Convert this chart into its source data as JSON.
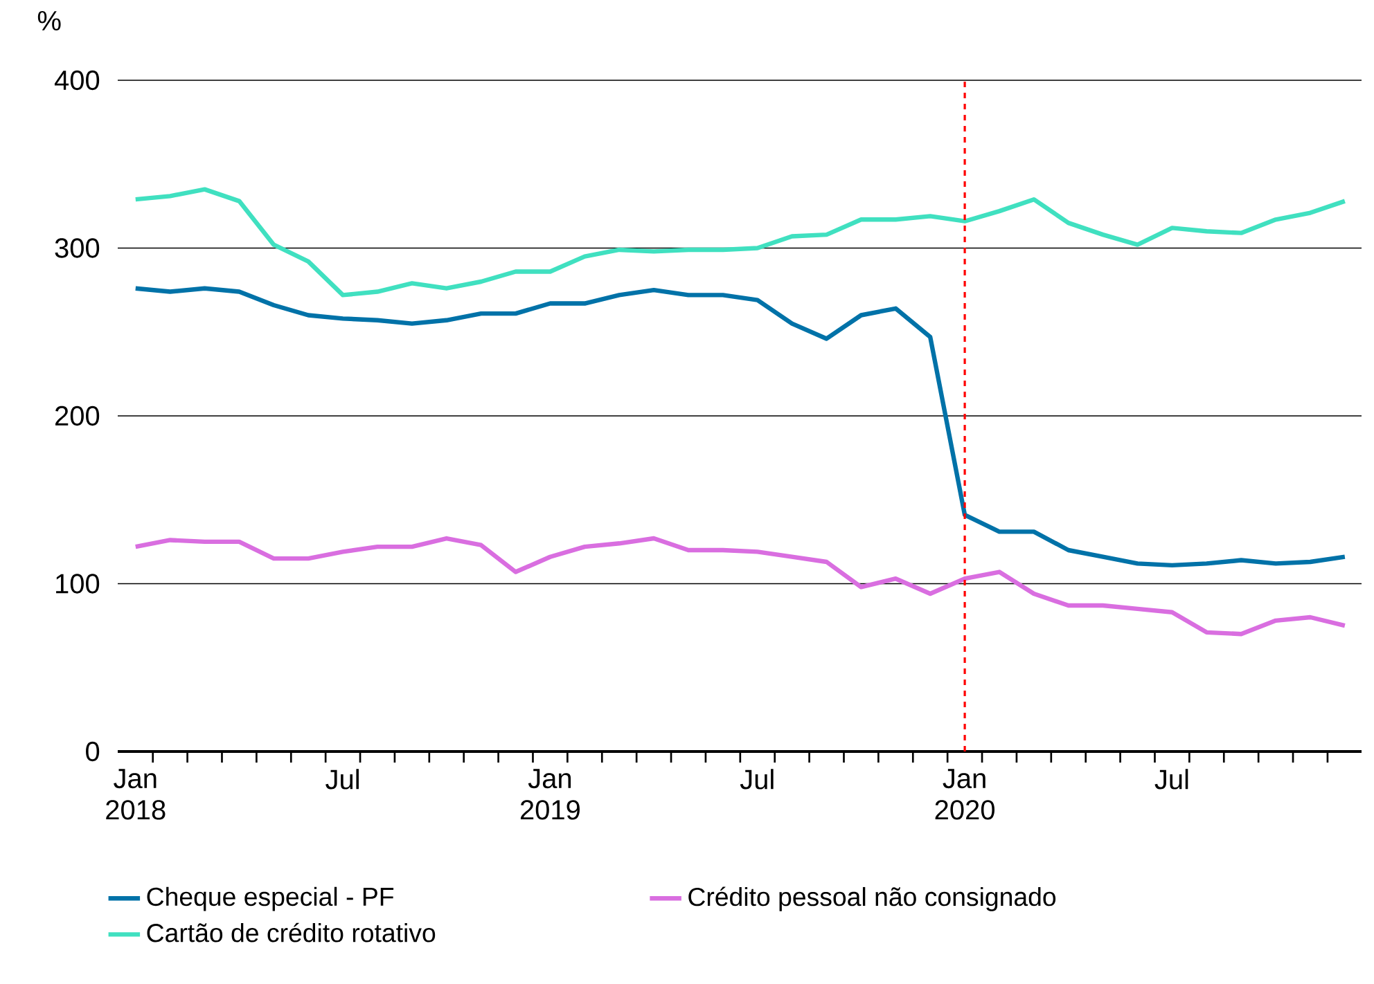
{
  "chart_data": {
    "type": "line",
    "ylabel": "%",
    "x": [
      "2018-01",
      "2018-02",
      "2018-03",
      "2018-04",
      "2018-05",
      "2018-06",
      "2018-07",
      "2018-08",
      "2018-09",
      "2018-10",
      "2018-11",
      "2018-12",
      "2019-01",
      "2019-02",
      "2019-03",
      "2019-04",
      "2019-05",
      "2019-06",
      "2019-07",
      "2019-08",
      "2019-09",
      "2019-10",
      "2019-11",
      "2019-12",
      "2020-01",
      "2020-02",
      "2020-03",
      "2020-04",
      "2020-05",
      "2020-06",
      "2020-07",
      "2020-08",
      "2020-09",
      "2020-10",
      "2020-11",
      "2020-12"
    ],
    "series": [
      {
        "name": "Cheque especial - PF",
        "color": "#0072a8",
        "values": [
          276,
          274,
          276,
          274,
          266,
          260,
          258,
          257,
          255,
          257,
          261,
          261,
          267,
          267,
          272,
          275,
          272,
          272,
          269,
          255,
          246,
          260,
          264,
          247,
          141,
          131,
          131,
          120,
          116,
          112,
          111,
          112,
          114,
          112,
          113,
          116
        ]
      },
      {
        "name": "Crédito pessoal não consignado",
        "color": "#d96ee0",
        "values": [
          122,
          126,
          125,
          125,
          115,
          115,
          119,
          122,
          122,
          127,
          123,
          107,
          116,
          122,
          124,
          127,
          120,
          120,
          119,
          116,
          113,
          98,
          103,
          94,
          103,
          107,
          94,
          87,
          87,
          85,
          83,
          71,
          70,
          78,
          80,
          75
        ]
      },
      {
        "name": "Cartão de crédito rotativo",
        "color": "#40e0c0",
        "values": [
          329,
          331,
          335,
          328,
          302,
          292,
          272,
          274,
          279,
          276,
          280,
          286,
          286,
          295,
          299,
          298,
          299,
          299,
          300,
          307,
          308,
          317,
          317,
          319,
          316,
          322,
          329,
          315,
          308,
          302,
          312,
          310,
          309,
          317,
          321,
          328
        ]
      }
    ],
    "xlim": [
      "2017-12-16",
      "2020-12-16"
    ],
    "xticks": [
      {
        "value": "2018-01",
        "label": "Jan 2018"
      },
      {
        "value": "2018-07",
        "label": "Jul"
      },
      {
        "value": "2019-01",
        "label": "Jan 2019"
      },
      {
        "value": "2019-07",
        "label": "Jul"
      },
      {
        "value": "2020-01",
        "label": "Jan 2020"
      },
      {
        "value": "2020-07",
        "label": "Jul"
      }
    ],
    "ylim": [
      0,
      400
    ],
    "yticks": [
      0,
      100,
      200,
      300,
      400
    ],
    "ref_lines": [
      {
        "axis": "x",
        "value": "2020-01",
        "color": "#ff0000",
        "line_style": "dashed"
      }
    ],
    "grid": "y",
    "legend": "bottom",
    "marker": "none",
    "line_style": "solid"
  }
}
